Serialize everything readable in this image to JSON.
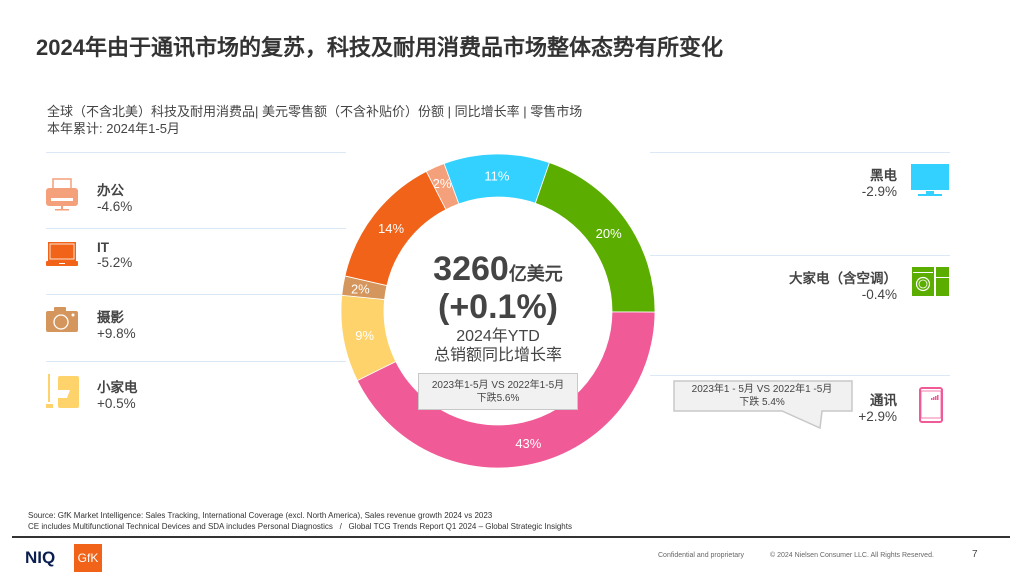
{
  "title": "2024年由于通讯市场的复苏，科技及耐用消费品市场整体态势有所变化",
  "subtitle": "全球（不含北美）科技及耐用消费品| 美元零售额（不含补贴价）份额 | 同比增长率 | 零售市场",
  "period": "本年累计: 2024年1-5月",
  "left_categories": [
    {
      "label": "办公",
      "value": "-4.6%",
      "icon": "printer-icon"
    },
    {
      "label": "IT",
      "value": "-5.2%",
      "icon": "laptop-icon"
    },
    {
      "label": "摄影",
      "value": "+9.8%",
      "icon": "camera-icon"
    },
    {
      "label": "小家电",
      "value": "+0.5%",
      "icon": "small-appliance-icon"
    }
  ],
  "right_categories": [
    {
      "label": "黑电",
      "value": "-2.9%",
      "icon": "tv-icon"
    },
    {
      "label": "大家电（含空调）",
      "value": "-0.4%",
      "icon": "washer-fridge-icon"
    },
    {
      "label": "通讯",
      "value": "+2.9%",
      "icon": "smartphone-icon"
    }
  ],
  "center": {
    "amount": "3260",
    "unit": "亿美元",
    "growth": "(+0.1%)",
    "line1": "2024年YTD",
    "line2": "总销额同比增长率"
  },
  "callout_center": {
    "line1": "2023年1-5月 VS 2022年1-5月",
    "line2": "下跌5.6%"
  },
  "callout_right": {
    "line1": "2023年1 - 5月 VS 2022年1 -5月",
    "line2": "下跌 5.4%"
  },
  "chart_data": {
    "type": "pie",
    "donut": true,
    "slices": [
      {
        "category": "办公",
        "value": 2,
        "label": "2%",
        "color": "#F4A07A"
      },
      {
        "category": "黑电",
        "value": 11,
        "label": "11%",
        "color": "#33D1FF"
      },
      {
        "category": "大家电（含空调）",
        "value": 20,
        "label": "20%",
        "color": "#5BAD00"
      },
      {
        "category": "通讯",
        "value": 43,
        "label": "43%",
        "color": "#F05A96"
      },
      {
        "category": "小家电",
        "value": 9,
        "label": "9%",
        "color": "#FFD36B"
      },
      {
        "category": "摄影",
        "value": 2,
        "label": "2%",
        "color": "#D4965C"
      },
      {
        "category": "IT",
        "value": 14,
        "label": "14%",
        "color": "#F06318"
      }
    ]
  },
  "footer": {
    "source1": "Source: GfK Market Intelligence: Sales Tracking, International Coverage (excl. North America), Sales revenue growth 2024 vs 2023",
    "source2": "CE includes Multifunctional Technical Devices and SDA includes Personal Diagnostics   /   Global TCG Trends Report Q1 2024 – Global Strategic Insights",
    "logo1": "NIQ",
    "logo2": "GfK",
    "confidential": "Confidential and proprietary",
    "copyright": "© 2024 Nielsen Consumer LLC. All Rights Reserved.",
    "page": "7"
  }
}
